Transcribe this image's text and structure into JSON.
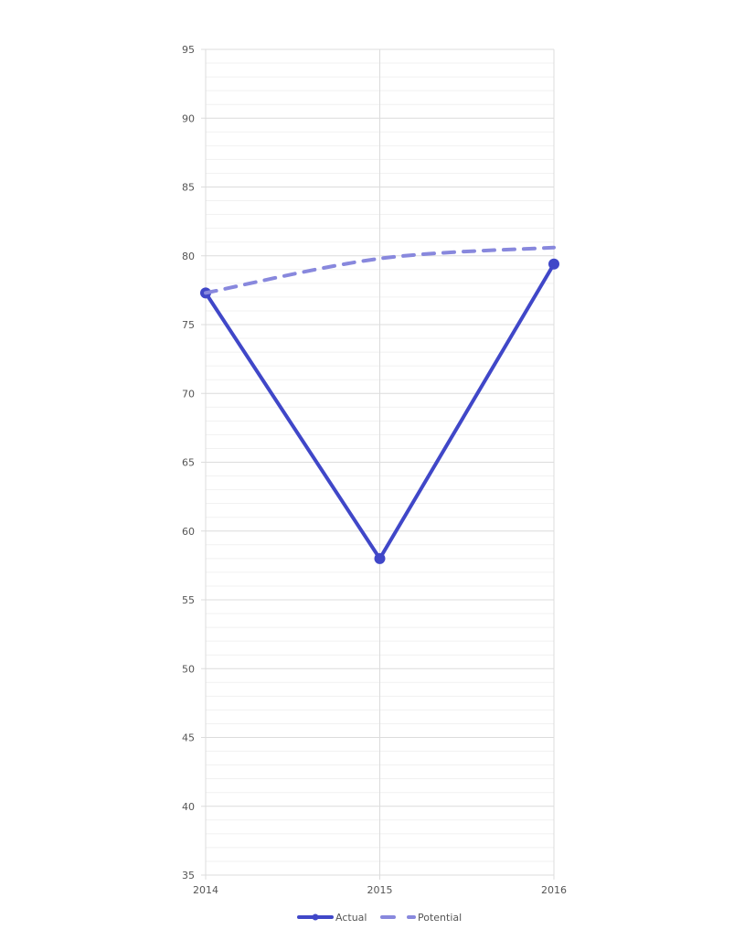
{
  "chart_data": {
    "type": "line",
    "title": "",
    "xlabel": "",
    "ylabel": "",
    "categories": [
      "2014",
      "2015",
      "2016"
    ],
    "ylim": [
      35,
      95
    ],
    "y_ticks": [
      35,
      40,
      45,
      50,
      55,
      60,
      65,
      70,
      75,
      80,
      85,
      90,
      95
    ],
    "y_minor_step": 1,
    "grid": true,
    "legend_position": "bottom",
    "series": [
      {
        "name": "Actual",
        "values": [
          77.3,
          58.0,
          79.4
        ],
        "color": "#4047c8",
        "style": "solid",
        "markers": true
      },
      {
        "name": "Potential",
        "values": [
          77.3,
          79.8,
          80.6
        ],
        "color": "#8888dd",
        "style": "dashed",
        "markers": false,
        "smooth": true
      }
    ]
  }
}
